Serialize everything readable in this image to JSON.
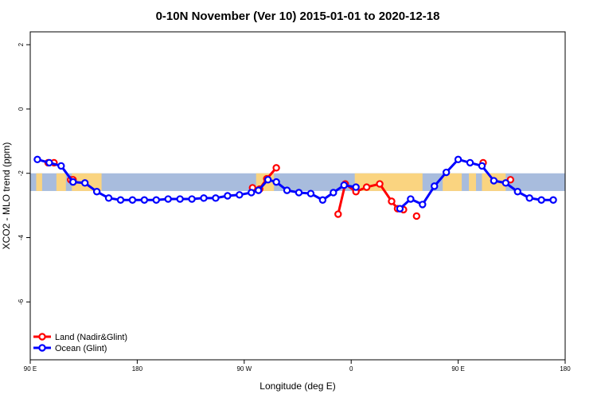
{
  "chart_data": {
    "type": "line",
    "title": "0-10N November (Ver 10)   2015-01-01 to 2020-12-18",
    "xlabel": "Longitude (deg E)",
    "ylabel": "XCO2 - MLO trend (ppm)",
    "xlim": [
      90,
      540
    ],
    "ylim": [
      -7.8,
      2.4
    ],
    "xticks": [
      {
        "value": 90,
        "label": "90 E"
      },
      {
        "value": 180,
        "label": "180"
      },
      {
        "value": 270,
        "label": "90 W"
      },
      {
        "value": 360,
        "label": "0"
      },
      {
        "value": 450,
        "label": "90 E"
      },
      {
        "value": 540,
        "label": "180"
      }
    ],
    "yticks": [
      {
        "value": 2,
        "label": "2"
      },
      {
        "value": 0,
        "label": "0"
      },
      {
        "value": -2,
        "label": "-2"
      },
      {
        "value": -4,
        "label": "-4"
      },
      {
        "value": -6,
        "label": "-6"
      }
    ],
    "lat_band": {
      "y_min": -2.55,
      "y_max": -2.0,
      "ocean_color": "#a8bcdd",
      "land_color": "#fad480"
    },
    "land_segments": [
      [
        95,
        100
      ],
      [
        112,
        120
      ],
      [
        125,
        150
      ],
      [
        280,
        295
      ],
      [
        363,
        420
      ],
      [
        437,
        453
      ],
      [
        459,
        465
      ],
      [
        470,
        490
      ]
    ],
    "series": [
      {
        "name": "Land (Nadir&Glint)",
        "color": "#ff0000",
        "segments": [
          [
            [
              105,
              -1.67
            ],
            [
              110,
              -1.67
            ]
          ],
          [
            [
              124,
              -2.2
            ],
            [
              126,
              -2.2
            ]
          ],
          [
            [
              277,
              -2.45
            ],
            [
              283,
              -2.49
            ],
            [
              289,
              -2.17
            ],
            [
              297,
              -1.83
            ]
          ],
          [
            [
              349,
              -3.27
            ],
            [
              355,
              -2.33
            ],
            [
              364,
              -2.57
            ],
            [
              373,
              -2.43
            ],
            [
              384,
              -2.33
            ],
            [
              394,
              -2.87
            ],
            [
              399,
              -3.1
            ],
            [
              404,
              -3.13
            ]
          ],
          [
            [
              415,
              -3.33
            ]
          ],
          [
            [
              471,
              -1.67
            ]
          ],
          [
            [
              494,
              -2.2
            ]
          ]
        ]
      },
      {
        "name": "Ocean (Glint)",
        "color": "#0000ff",
        "segments": [
          [
            [
              96,
              -1.57
            ],
            [
              106,
              -1.67
            ],
            [
              116,
              -1.77
            ],
            [
              126,
              -2.27
            ],
            [
              136,
              -2.3
            ],
            [
              146,
              -2.57
            ],
            [
              156,
              -2.77
            ],
            [
              166,
              -2.83
            ],
            [
              176,
              -2.83
            ],
            [
              186,
              -2.83
            ],
            [
              196,
              -2.83
            ],
            [
              206,
              -2.8
            ],
            [
              216,
              -2.8
            ],
            [
              226,
              -2.8
            ],
            [
              236,
              -2.77
            ],
            [
              246,
              -2.77
            ],
            [
              256,
              -2.7
            ],
            [
              266,
              -2.67
            ],
            [
              276,
              -2.6
            ],
            [
              282,
              -2.53
            ],
            [
              290,
              -2.2
            ],
            [
              297,
              -2.27
            ],
            [
              306,
              -2.53
            ],
            [
              316,
              -2.6
            ],
            [
              326,
              -2.63
            ],
            [
              336,
              -2.83
            ],
            [
              345,
              -2.6
            ],
            [
              354,
              -2.37
            ],
            [
              364,
              -2.43
            ]
          ],
          [
            [
              401,
              -3.1
            ],
            [
              410,
              -2.8
            ],
            [
              420,
              -2.97
            ],
            [
              430,
              -2.4
            ],
            [
              440,
              -1.97
            ],
            [
              450,
              -1.57
            ],
            [
              460,
              -1.67
            ],
            [
              470,
              -1.77
            ],
            [
              480,
              -2.23
            ],
            [
              490,
              -2.3
            ],
            [
              500,
              -2.57
            ],
            [
              510,
              -2.77
            ],
            [
              520,
              -2.83
            ],
            [
              530,
              -2.83
            ]
          ]
        ]
      }
    ]
  }
}
